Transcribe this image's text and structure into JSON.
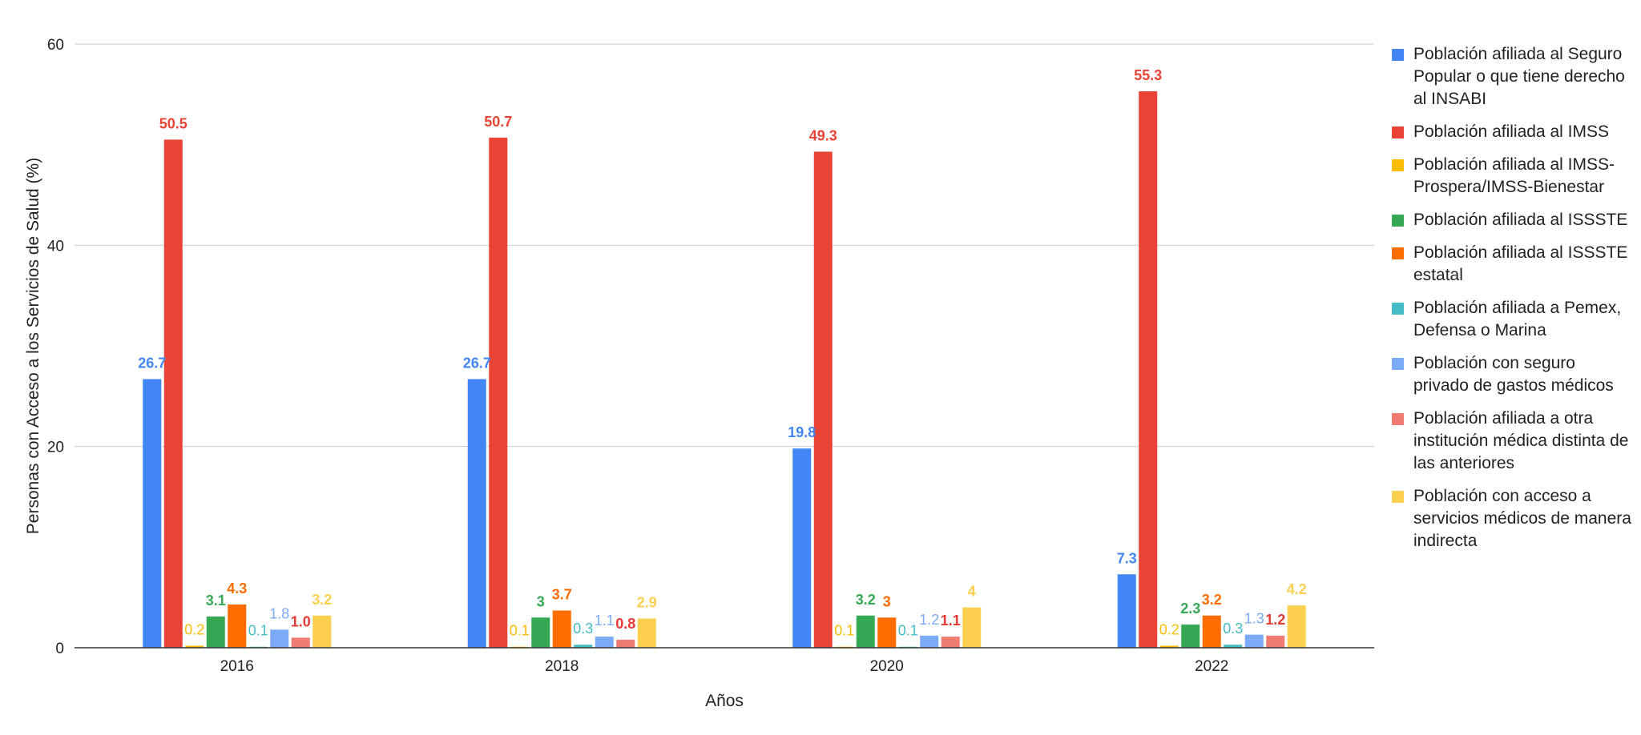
{
  "chart_data": {
    "type": "bar",
    "title": "",
    "xlabel": "Años",
    "ylabel": "Personas con Acceso a los Servicios de Salud (%)",
    "ylim": [
      0,
      60
    ],
    "yticks": [
      0,
      20,
      40,
      60
    ],
    "grid": true,
    "legend_position": "right",
    "categories": [
      "2016",
      "2018",
      "2020",
      "2022"
    ],
    "series": [
      {
        "name": "Población afiliada al Seguro Popular o que tiene derecho al INSABI",
        "color": "#4285f4",
        "values": [
          26.7,
          26.7,
          19.8,
          7.3
        ],
        "labels": [
          "26.7",
          "26.7",
          "19.8",
          "7.3"
        ],
        "label_style": "bold"
      },
      {
        "name": "Población afiliada al IMSS",
        "color": "#ea4335",
        "values": [
          50.5,
          50.7,
          49.3,
          55.3
        ],
        "labels": [
          "50.5",
          "50.7",
          "49.3",
          "55.3"
        ],
        "label_style": "bold"
      },
      {
        "name": "Población afiliada al IMSS-Prospera/IMSS-Bienestar",
        "color": "#fbbc04",
        "values": [
          0.2,
          0.1,
          0.1,
          0.2
        ],
        "labels": [
          "0.2",
          "0.1",
          "0.1",
          "0.2"
        ],
        "label_style": "normal"
      },
      {
        "name": "Población afiliada al ISSSTE",
        "color": "#34a853",
        "values": [
          3.1,
          3.0,
          3.2,
          2.3
        ],
        "labels": [
          "3.1",
          "3",
          "3.2",
          "2.3"
        ],
        "label_style": "bold"
      },
      {
        "name": "Población afiliada al ISSSTE estatal",
        "color": "#ff6d01",
        "values": [
          4.3,
          3.7,
          3.0,
          3.2
        ],
        "labels": [
          "4.3",
          "3.7",
          "3",
          "3.2"
        ],
        "label_style": "bold"
      },
      {
        "name": "Población afiliada a Pemex, Defensa o Marina",
        "color": "#46bdc6",
        "values": [
          0.1,
          0.3,
          0.1,
          0.3
        ],
        "labels": [
          "0.1",
          "0.3",
          "0.1",
          "0.3"
        ],
        "label_style": "normal"
      },
      {
        "name": "Población con seguro privado de gastos médicos",
        "color": "#7baaf7",
        "values": [
          1.8,
          1.1,
          1.2,
          1.3
        ],
        "labels": [
          "1.8",
          "1.1",
          "1.2",
          "1.3"
        ],
        "label_style": "normal"
      },
      {
        "name": "Población afiliada a otra institución médica distinta de las anteriores",
        "color": "#f07b72",
        "values": [
          1.0,
          0.8,
          1.1,
          1.2
        ],
        "labels": [
          "1.0",
          "0.8",
          "1.1",
          "1.2"
        ],
        "label_style": "outlined"
      },
      {
        "name": "Población con acceso a servicios médicos de manera indirecta",
        "color": "#fcd04f",
        "values": [
          3.2,
          2.9,
          4.0,
          4.2
        ],
        "labels": [
          "3.2",
          "2.9",
          "4",
          "4.2"
        ],
        "label_style": "bold"
      }
    ]
  }
}
